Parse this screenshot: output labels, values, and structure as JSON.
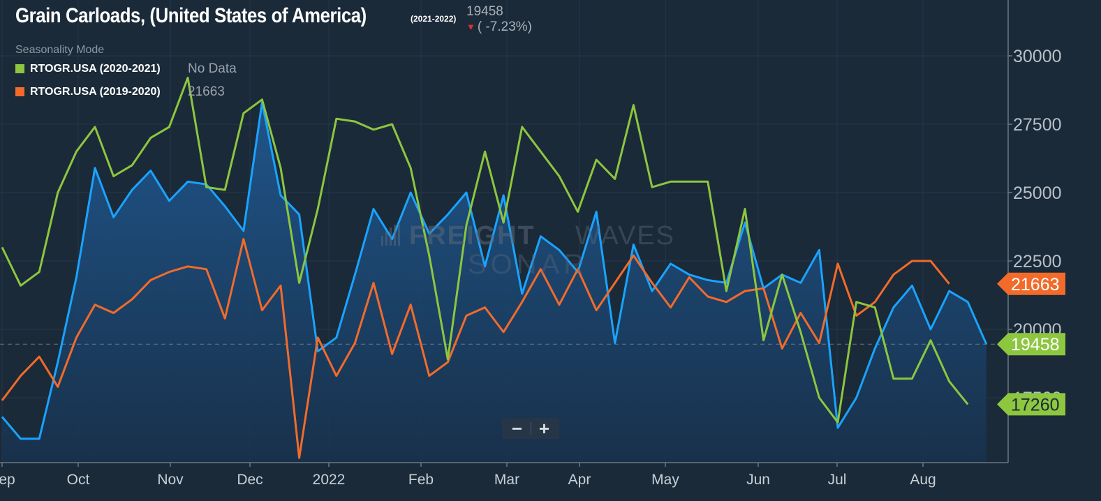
{
  "title": {
    "main": "Grain Carloads, (United States of America)",
    "years": "(2021-2022)"
  },
  "current": {
    "value": "19458",
    "change": "( -7.23%)"
  },
  "seasonality_label": "Seasonality Mode",
  "legend": [
    {
      "name": "RTOGR.USA (2020-2021)",
      "value": "No Data",
      "color": "#8dc63f"
    },
    {
      "name": "RTOGR.USA (2019-2020)",
      "value": "21663",
      "color": "#f26b2b"
    }
  ],
  "watermark": {
    "brand_a": "FREIGHT",
    "brand_b": "WAVES",
    "product": "SONAR"
  },
  "zoom": {
    "minus": "−",
    "plus": "+"
  },
  "colors": {
    "background": "#1b2a38",
    "current_series": "#1aa3ff",
    "series_2020_2021": "#8dc63f",
    "series_2019_2020": "#f26b2b",
    "down_arrow": "#e0302f"
  },
  "chart_data": {
    "type": "line",
    "title": "Grain Carloads, (United States of America)",
    "x_ticks": [
      "Sep",
      "Oct",
      "Nov",
      "Dec",
      "2022",
      "Feb",
      "Mar",
      "Apr",
      "May",
      "Jun",
      "Jul",
      "Aug"
    ],
    "y_ticks": [
      "17500",
      "20000",
      "22500",
      "25000",
      "27500",
      "30000"
    ],
    "ylim": [
      15200,
      31500
    ],
    "grid": true,
    "reference_line": 19458,
    "price_tags": [
      {
        "value": 21663,
        "label": "21663",
        "color": "#f26b2b",
        "text_color": "#ffffff"
      },
      {
        "value": 19458,
        "label": "19458",
        "color": "#8dc63f",
        "text_color": "#ffffff"
      },
      {
        "value": 17260,
        "label": "17260",
        "color": "#8dc63f",
        "text_color": "#1b2a38"
      }
    ],
    "series": [
      {
        "name": "RTOGR.USA (2021-2022)",
        "color": "#1aa3ff",
        "area": true,
        "points": [
          [
            0,
            16800
          ],
          [
            1,
            16000
          ],
          [
            2,
            16000
          ],
          [
            3,
            18800
          ],
          [
            4,
            21900
          ],
          [
            5,
            25900
          ],
          [
            6,
            24100
          ],
          [
            7,
            25100
          ],
          [
            8,
            25800
          ],
          [
            9,
            24700
          ],
          [
            10,
            25400
          ],
          [
            11,
            25300
          ],
          [
            12,
            24500
          ],
          [
            13,
            23600
          ],
          [
            14,
            28300
          ],
          [
            15,
            24900
          ],
          [
            16,
            24200
          ],
          [
            17,
            19200
          ],
          [
            18,
            19700
          ],
          [
            19,
            22000
          ],
          [
            20,
            24400
          ],
          [
            21,
            23300
          ],
          [
            22,
            25000
          ],
          [
            23,
            23500
          ],
          [
            24,
            24200
          ],
          [
            25,
            25000
          ],
          [
            26,
            22300
          ],
          [
            27,
            24900
          ],
          [
            28,
            21300
          ],
          [
            29,
            23400
          ],
          [
            30,
            22900
          ],
          [
            31,
            22100
          ],
          [
            32,
            24300
          ],
          [
            33,
            19500
          ],
          [
            34,
            23100
          ],
          [
            35,
            21400
          ],
          [
            36,
            22400
          ],
          [
            37,
            22000
          ],
          [
            38,
            21800
          ],
          [
            39,
            21700
          ],
          [
            40,
            23900
          ],
          [
            41,
            21500
          ],
          [
            42,
            22000
          ],
          [
            43,
            21700
          ],
          [
            44,
            22900
          ],
          [
            45,
            16400
          ],
          [
            46,
            17500
          ],
          [
            47,
            19300
          ],
          [
            48,
            20800
          ],
          [
            49,
            21600
          ],
          [
            50,
            20000
          ],
          [
            51,
            21400
          ],
          [
            52,
            21000
          ],
          [
            53,
            19458
          ]
        ]
      },
      {
        "name": "RTOGR.USA (2020-2021)",
        "color": "#8dc63f",
        "area": false,
        "points": [
          [
            0,
            23000
          ],
          [
            1,
            21600
          ],
          [
            2,
            22100
          ],
          [
            3,
            25000
          ],
          [
            4,
            26500
          ],
          [
            5,
            27400
          ],
          [
            6,
            25600
          ],
          [
            7,
            26000
          ],
          [
            8,
            27000
          ],
          [
            9,
            27400
          ],
          [
            10,
            29200
          ],
          [
            11,
            25200
          ],
          [
            12,
            25100
          ],
          [
            13,
            27900
          ],
          [
            14,
            28400
          ],
          [
            15,
            25900
          ],
          [
            16,
            21700
          ],
          [
            17,
            24400
          ],
          [
            18,
            27700
          ],
          [
            19,
            27600
          ],
          [
            20,
            27300
          ],
          [
            21,
            27500
          ],
          [
            22,
            25900
          ],
          [
            23,
            22700
          ],
          [
            24,
            18900
          ],
          [
            25,
            23800
          ],
          [
            26,
            26500
          ],
          [
            27,
            23900
          ],
          [
            28,
            27400
          ],
          [
            29,
            26500
          ],
          [
            30,
            25600
          ],
          [
            31,
            24300
          ],
          [
            32,
            26200
          ],
          [
            33,
            25500
          ],
          [
            34,
            28200
          ],
          [
            35,
            25200
          ],
          [
            36,
            25400
          ],
          [
            37,
            25400
          ],
          [
            38,
            25400
          ],
          [
            39,
            21400
          ],
          [
            40,
            24400
          ],
          [
            41,
            19600
          ],
          [
            42,
            22000
          ],
          [
            43,
            19900
          ],
          [
            44,
            17500
          ],
          [
            45,
            16600
          ],
          [
            46,
            21000
          ],
          [
            47,
            20800
          ],
          [
            48,
            18200
          ],
          [
            49,
            18200
          ],
          [
            50,
            19600
          ],
          [
            51,
            18100
          ],
          [
            52,
            17260
          ]
        ]
      },
      {
        "name": "RTOGR.USA (2019-2020)",
        "color": "#f26b2b",
        "area": false,
        "points": [
          [
            0,
            17400
          ],
          [
            1,
            18300
          ],
          [
            2,
            19000
          ],
          [
            3,
            17900
          ],
          [
            4,
            19700
          ],
          [
            5,
            20900
          ],
          [
            6,
            20600
          ],
          [
            7,
            21100
          ],
          [
            8,
            21800
          ],
          [
            9,
            22100
          ],
          [
            10,
            22300
          ],
          [
            11,
            22200
          ],
          [
            12,
            20400
          ],
          [
            13,
            23300
          ],
          [
            14,
            20700
          ],
          [
            15,
            21600
          ],
          [
            16,
            15300
          ],
          [
            17,
            19700
          ],
          [
            18,
            18300
          ],
          [
            19,
            19500
          ],
          [
            20,
            21700
          ],
          [
            21,
            19100
          ],
          [
            22,
            20900
          ],
          [
            23,
            18300
          ],
          [
            24,
            18800
          ],
          [
            25,
            20500
          ],
          [
            26,
            20800
          ],
          [
            27,
            19900
          ],
          [
            28,
            21000
          ],
          [
            29,
            22200
          ],
          [
            30,
            20900
          ],
          [
            31,
            22200
          ],
          [
            32,
            20700
          ],
          [
            33,
            21700
          ],
          [
            34,
            22700
          ],
          [
            35,
            21700
          ],
          [
            36,
            20800
          ],
          [
            37,
            21900
          ],
          [
            38,
            21200
          ],
          [
            39,
            21000
          ],
          [
            40,
            21400
          ],
          [
            41,
            21500
          ],
          [
            42,
            19300
          ],
          [
            43,
            20600
          ],
          [
            44,
            19500
          ],
          [
            45,
            22400
          ],
          [
            46,
            20500
          ],
          [
            47,
            21000
          ],
          [
            48,
            22000
          ],
          [
            49,
            22500
          ],
          [
            50,
            22500
          ],
          [
            51,
            21663
          ]
        ]
      }
    ]
  }
}
